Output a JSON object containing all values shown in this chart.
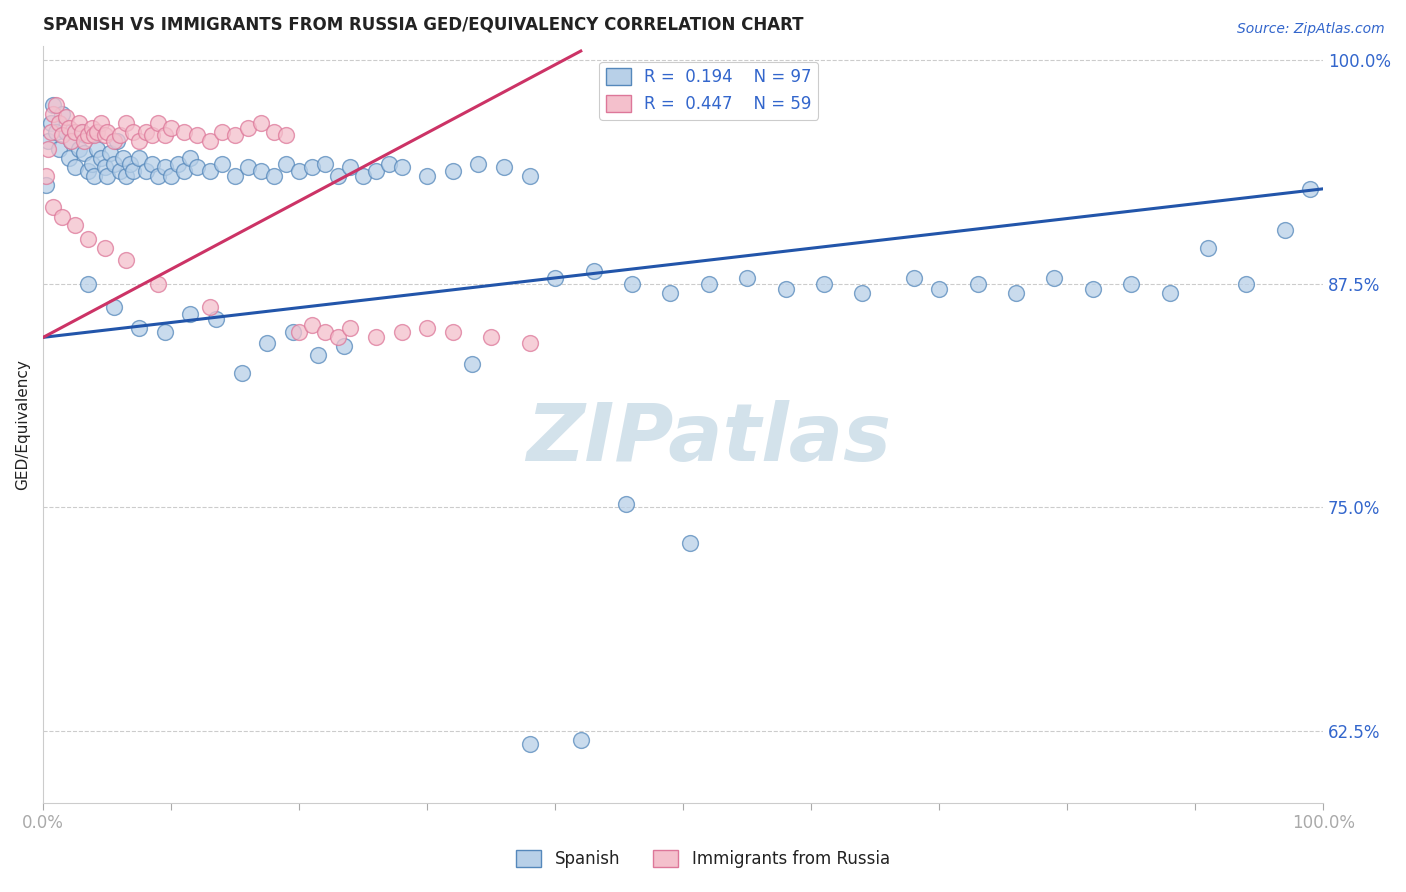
{
  "title": "SPANISH VS IMMIGRANTS FROM RUSSIA GED/EQUIVALENCY CORRELATION CHART",
  "source_text": "Source: ZipAtlas.com",
  "ylabel": "GED/Equivalency",
  "legend_label_blue": "Spanish",
  "legend_label_pink": "Immigrants from Russia",
  "r_blue": 0.194,
  "n_blue": 97,
  "r_pink": 0.447,
  "n_pink": 59,
  "xmin": 0.0,
  "xmax": 1.0,
  "ymin": 0.585,
  "ymax": 1.008,
  "yticks": [
    0.625,
    0.75,
    0.875,
    1.0
  ],
  "ytick_labels": [
    "62.5%",
    "75.0%",
    "87.5%",
    "100.0%"
  ],
  "xticks": [
    0.0,
    0.1,
    0.2,
    0.3,
    0.4,
    0.5,
    0.6,
    0.7,
    0.8,
    0.9,
    1.0
  ],
  "color_blue": "#b8d0e8",
  "color_blue_edge": "#5588bb",
  "color_blue_line": "#2255aa",
  "color_pink": "#f4c0cc",
  "color_pink_edge": "#dd7799",
  "color_pink_line": "#cc3366",
  "color_text_blue": "#3366cc",
  "color_text_dark": "#222222",
  "background_color": "#ffffff",
  "watermark_text": "ZIPatlas",
  "watermark_color": "#ccdde8",
  "blue_trend_x0": 0.0,
  "blue_trend_x1": 1.0,
  "blue_trend_y0": 0.845,
  "blue_trend_y1": 0.928,
  "pink_trend_x0": 0.0,
  "pink_trend_x1": 0.42,
  "pink_trend_y0": 0.845,
  "pink_trend_y1": 1.005,
  "blue_x": [
    0.002,
    0.004,
    0.006,
    0.008,
    0.01,
    0.012,
    0.015,
    0.018,
    0.02,
    0.022,
    0.025,
    0.028,
    0.03,
    0.032,
    0.035,
    0.038,
    0.04,
    0.042,
    0.045,
    0.048,
    0.05,
    0.052,
    0.055,
    0.058,
    0.06,
    0.062,
    0.065,
    0.068,
    0.07,
    0.075,
    0.08,
    0.085,
    0.09,
    0.095,
    0.1,
    0.105,
    0.11,
    0.115,
    0.12,
    0.13,
    0.14,
    0.15,
    0.16,
    0.17,
    0.18,
    0.19,
    0.2,
    0.21,
    0.22,
    0.23,
    0.24,
    0.25,
    0.26,
    0.27,
    0.28,
    0.3,
    0.32,
    0.34,
    0.36,
    0.38,
    0.4,
    0.43,
    0.46,
    0.49,
    0.52,
    0.55,
    0.58,
    0.61,
    0.64,
    0.68,
    0.7,
    0.73,
    0.76,
    0.79,
    0.82,
    0.85,
    0.88,
    0.91,
    0.94,
    0.97,
    0.99,
    0.035,
    0.055,
    0.075,
    0.095,
    0.115,
    0.135,
    0.155,
    0.175,
    0.195,
    0.215,
    0.235,
    0.335,
    0.455,
    0.505,
    0.42,
    0.38
  ],
  "blue_y": [
    0.93,
    0.955,
    0.965,
    0.975,
    0.96,
    0.95,
    0.97,
    0.96,
    0.945,
    0.955,
    0.94,
    0.95,
    0.96,
    0.948,
    0.938,
    0.942,
    0.935,
    0.95,
    0.945,
    0.94,
    0.935,
    0.948,
    0.942,
    0.955,
    0.938,
    0.945,
    0.935,
    0.942,
    0.938,
    0.945,
    0.938,
    0.942,
    0.935,
    0.94,
    0.935,
    0.942,
    0.938,
    0.945,
    0.94,
    0.938,
    0.942,
    0.935,
    0.94,
    0.938,
    0.935,
    0.942,
    0.938,
    0.94,
    0.942,
    0.935,
    0.94,
    0.935,
    0.938,
    0.942,
    0.94,
    0.935,
    0.938,
    0.942,
    0.94,
    0.935,
    0.878,
    0.882,
    0.875,
    0.87,
    0.875,
    0.878,
    0.872,
    0.875,
    0.87,
    0.878,
    0.872,
    0.875,
    0.87,
    0.878,
    0.872,
    0.875,
    0.87,
    0.895,
    0.875,
    0.905,
    0.928,
    0.875,
    0.862,
    0.85,
    0.848,
    0.858,
    0.855,
    0.825,
    0.842,
    0.848,
    0.835,
    0.84,
    0.83,
    0.752,
    0.73,
    0.62,
    0.618
  ],
  "pink_x": [
    0.002,
    0.004,
    0.006,
    0.008,
    0.01,
    0.012,
    0.015,
    0.018,
    0.02,
    0.022,
    0.025,
    0.028,
    0.03,
    0.032,
    0.035,
    0.038,
    0.04,
    0.042,
    0.045,
    0.048,
    0.05,
    0.055,
    0.06,
    0.065,
    0.07,
    0.075,
    0.08,
    0.085,
    0.09,
    0.095,
    0.1,
    0.11,
    0.12,
    0.13,
    0.14,
    0.15,
    0.16,
    0.17,
    0.18,
    0.19,
    0.2,
    0.21,
    0.22,
    0.23,
    0.24,
    0.26,
    0.28,
    0.3,
    0.32,
    0.35,
    0.38,
    0.008,
    0.015,
    0.025,
    0.035,
    0.048,
    0.065,
    0.09,
    0.13
  ],
  "pink_y": [
    0.935,
    0.95,
    0.96,
    0.97,
    0.975,
    0.965,
    0.958,
    0.968,
    0.962,
    0.955,
    0.96,
    0.965,
    0.96,
    0.955,
    0.958,
    0.962,
    0.958,
    0.96,
    0.965,
    0.958,
    0.96,
    0.955,
    0.958,
    0.965,
    0.96,
    0.955,
    0.96,
    0.958,
    0.965,
    0.958,
    0.962,
    0.96,
    0.958,
    0.955,
    0.96,
    0.958,
    0.962,
    0.965,
    0.96,
    0.958,
    0.848,
    0.852,
    0.848,
    0.845,
    0.85,
    0.845,
    0.848,
    0.85,
    0.848,
    0.845,
    0.842,
    0.918,
    0.912,
    0.908,
    0.9,
    0.895,
    0.888,
    0.875,
    0.862
  ]
}
